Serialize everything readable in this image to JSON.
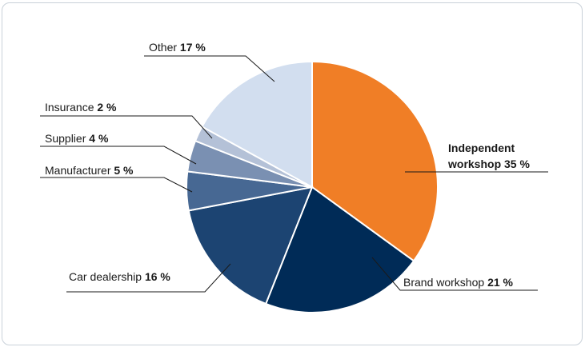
{
  "chart_data": {
    "type": "pie",
    "slices": [
      {
        "name": "Independent workshop",
        "value": 35,
        "label_lines": [
          "Independent",
          "workshop"
        ],
        "pct_text": "35 %",
        "color": "#f07e26",
        "label_bold": true
      },
      {
        "name": "Brand workshop",
        "value": 21,
        "label_lines": [
          "Brand workshop"
        ],
        "pct_text": "21 %",
        "color": "#002b57",
        "label_bold": false
      },
      {
        "name": "Car dealership",
        "value": 16,
        "label_lines": [
          "Car dealership"
        ],
        "pct_text": "16 %",
        "color": "#1c4472",
        "label_bold": false
      },
      {
        "name": "Manufacturer",
        "value": 5,
        "label_lines": [
          "Manufacturer"
        ],
        "pct_text": "5 %",
        "color": "#476893",
        "label_bold": false
      },
      {
        "name": "Supplier",
        "value": 4,
        "label_lines": [
          "Supplier"
        ],
        "pct_text": "4 %",
        "color": "#7a90b2",
        "label_bold": false
      },
      {
        "name": "Insurance",
        "value": 2,
        "label_lines": [
          "Insurance"
        ],
        "pct_text": "2 %",
        "color": "#b4c1d7",
        "label_bold": false
      },
      {
        "name": "Other",
        "value": 17,
        "label_lines": [
          "Other"
        ],
        "pct_text": "17 %",
        "color": "#d2deef",
        "label_bold": false
      }
    ]
  }
}
